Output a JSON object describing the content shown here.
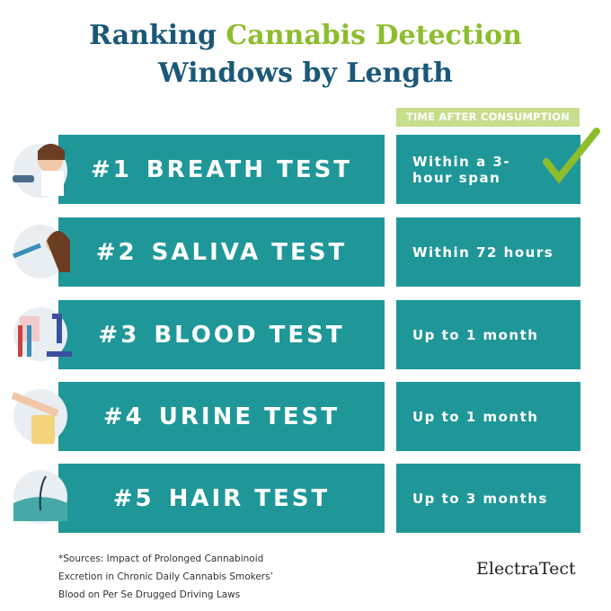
{
  "title": {
    "part1": "Ranking",
    "highlight": "Cannabis Detection",
    "line2": "Windows by Length"
  },
  "column_header": "TIME AFTER CONSUMPTION",
  "rows": [
    {
      "rank": "#1",
      "name": "BREATH TEST",
      "time": "Within a 3-hour span"
    },
    {
      "rank": "#2",
      "name": "SALIVA TEST",
      "time": "Within 72 hours"
    },
    {
      "rank": "#3",
      "name": "BLOOD TEST",
      "time": "Up to 1 month"
    },
    {
      "rank": "#4",
      "name": "URINE TEST",
      "time": "Up to 1 month"
    },
    {
      "rank": "#5",
      "name": "HAIR TEST",
      "time": "Up to 3 months"
    }
  ],
  "footnote": "*Sources: Impact of Prolonged Cannabinoid Excretion in Chronic Daily Cannabis Smokers’ Blood on Per Se Drugged Driving Laws",
  "logo": "ElectraTect"
}
